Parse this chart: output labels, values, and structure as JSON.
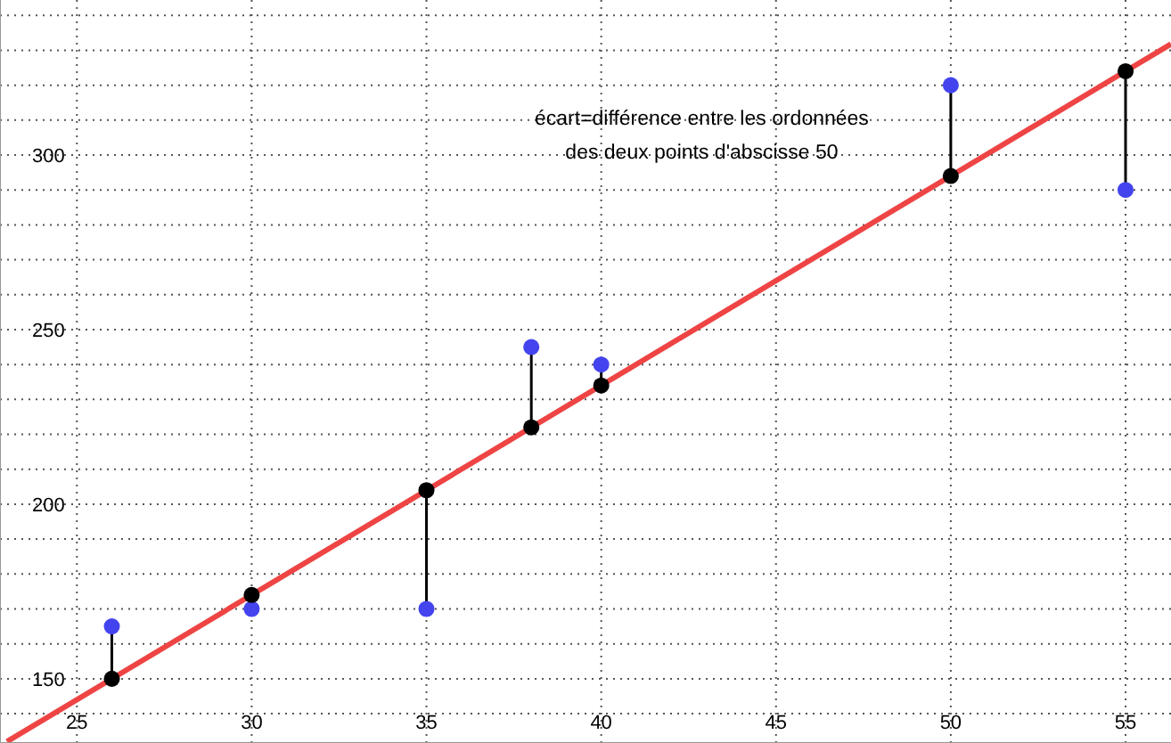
{
  "chart_data": {
    "type": "scatter",
    "xlim": [
      22.8,
      56.3
    ],
    "ylim": [
      131.6,
      344.4
    ],
    "xticks": [
      25,
      30,
      35,
      40,
      45,
      50,
      55
    ],
    "yticks": [
      {
        "value": 140,
        "label": null
      },
      150,
      {
        "value": 160,
        "label": null
      },
      {
        "value": 170,
        "label": null
      },
      {
        "value": 180,
        "label": null
      },
      {
        "value": 190,
        "label": null
      },
      200,
      {
        "value": 210,
        "label": null
      },
      {
        "value": 220,
        "label": null
      },
      {
        "value": 230,
        "label": null
      },
      {
        "value": 240,
        "label": null
      },
      250,
      {
        "value": 260,
        "label": null
      },
      {
        "value": 270,
        "label": null
      },
      {
        "value": 280,
        "label": null
      },
      {
        "value": 290,
        "label": null
      },
      300,
      {
        "value": 310,
        "label": null
      },
      {
        "value": 320,
        "label": null
      },
      {
        "value": 330,
        "label": null
      },
      {
        "value": 340,
        "label": null
      }
    ],
    "grid": true,
    "series": [
      {
        "type": "line",
        "color": "#ee4444",
        "marker": "none",
        "line_style": "solid",
        "x": [
          23,
          56.3
        ],
        "values": [
          132,
          331.8
        ]
      },
      {
        "color": "#4444ee",
        "marker": "circle",
        "x": [
          26,
          30,
          35,
          38,
          40,
          50,
          55
        ],
        "values": [
          165,
          170,
          170,
          245,
          240,
          320,
          290
        ],
        "errors": [
          [
            150,
            165
          ],
          [
            170,
            174
          ],
          [
            170,
            204
          ],
          [
            222,
            245
          ],
          [
            234,
            240
          ],
          [
            294,
            320
          ],
          [
            290,
            324
          ]
        ]
      },
      {
        "color": "#000000",
        "marker": "circle",
        "x": [
          26,
          30,
          35,
          38,
          40,
          50,
          55
        ],
        "values": [
          150,
          174,
          204,
          222,
          234,
          294,
          324
        ]
      }
    ],
    "annotations": [
      "écart=différence entre les ordonnées\ndes deux points d'abscisse 50"
    ]
  }
}
